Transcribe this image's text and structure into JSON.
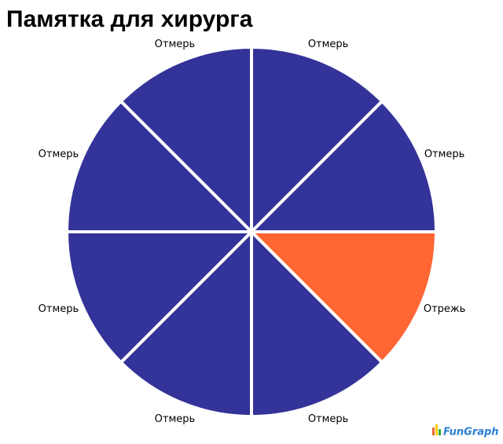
{
  "chart_data": {
    "type": "pie",
    "title": "Памятка для хирурга",
    "categories": [
      "Отмерь",
      "Отмерь",
      "Отрежь",
      "Отмерь",
      "Отмерь",
      "Отмерь",
      "Отмерь",
      "Отмерь"
    ],
    "values": [
      12.5,
      12.5,
      12.5,
      12.5,
      12.5,
      12.5,
      12.5,
      12.5
    ],
    "colors": [
      "#333399",
      "#333399",
      "#ff6633",
      "#333399",
      "#333399",
      "#333399",
      "#333399",
      "#333399"
    ],
    "start_angle": 0,
    "direction": "clockwise"
  },
  "watermark": "FunGraph"
}
